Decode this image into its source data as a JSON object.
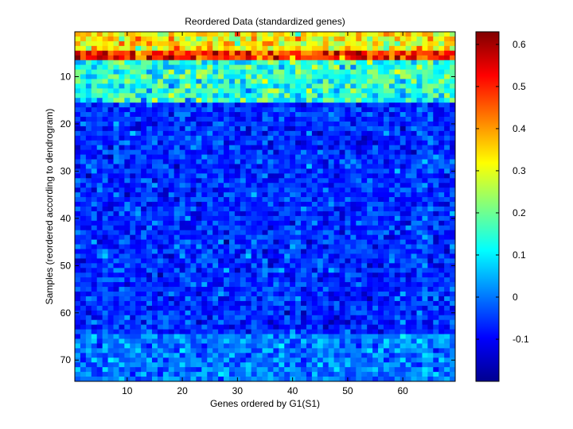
{
  "chart_data": {
    "type": "heatmap",
    "title": "Reordered Data (standardized genes)",
    "xlabel": "Genes ordered by G1(S1)",
    "ylabel": "Samples (reordered according to dendrogram)",
    "n_cols": 69,
    "n_rows": 74,
    "x_ticks": [
      10,
      20,
      30,
      40,
      50,
      60
    ],
    "y_ticks": [
      10,
      20,
      30,
      40,
      50,
      60,
      70
    ],
    "colorbar": {
      "colormap": "jet",
      "min": -0.2,
      "max": 0.63,
      "ticks": [
        -0.1,
        0,
        0.1,
        0.2,
        0.3,
        0.4,
        0.5,
        0.6
      ],
      "tick_labels": [
        "-0.1",
        "0",
        "0.1",
        "0.2",
        "0.3",
        "0.4",
        "0.5",
        "0.6"
      ]
    },
    "row_profile": [
      {
        "rows": [
          1,
          4
        ],
        "mean": 0.32
      },
      {
        "rows": [
          5,
          6
        ],
        "mean": 0.5
      },
      {
        "rows": [
          7,
          15
        ],
        "mean": 0.14
      },
      {
        "rows": [
          16,
          64
        ],
        "mean": -0.06
      },
      {
        "rows": [
          65,
          74
        ],
        "mean": 0.0
      }
    ],
    "grid": false,
    "legend": "colorbar-right"
  }
}
